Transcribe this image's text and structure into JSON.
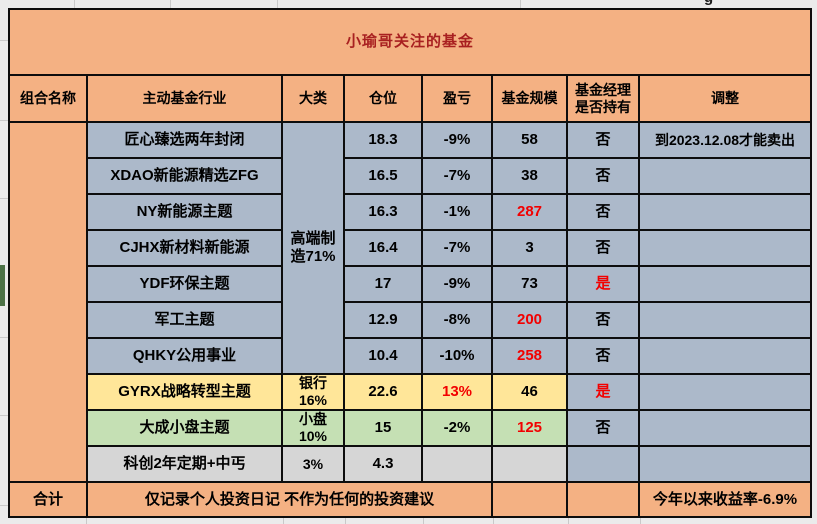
{
  "window": {
    "stray_glyph": "g"
  },
  "title": "小瑜哥关注的基金",
  "columns": [
    "组合名称",
    "主动基金行业",
    "大类",
    "仓位",
    "盈亏",
    "基金规模",
    "基金经理是否持有",
    "调整"
  ],
  "category_merged": "高端制造71%",
  "rows": [
    {
      "name": "匠心臻选两年封闭",
      "category": "",
      "position": "18.3",
      "pnl": "-9%",
      "pnl_red": false,
      "size": "58",
      "size_red": false,
      "held": "否",
      "held_red": false,
      "note": "到2023.12.08才能卖出",
      "bg": "blue"
    },
    {
      "name": "XDAO新能源精选ZFG",
      "category": "",
      "position": "16.5",
      "pnl": "-7%",
      "pnl_red": false,
      "size": "38",
      "size_red": false,
      "held": "否",
      "held_red": false,
      "note": "",
      "bg": "blue"
    },
    {
      "name": "NY新能源主题",
      "category": "",
      "position": "16.3",
      "pnl": "-1%",
      "pnl_red": false,
      "size": "287",
      "size_red": true,
      "held": "否",
      "held_red": false,
      "note": "",
      "bg": "blue"
    },
    {
      "name": "CJHX新材料新能源",
      "category": "",
      "position": "16.4",
      "pnl": "-7%",
      "pnl_red": false,
      "size": "3",
      "size_red": false,
      "held": "否",
      "held_red": false,
      "note": "",
      "bg": "blue"
    },
    {
      "name": "YDF环保主题",
      "category": "",
      "position": "17",
      "pnl": "-9%",
      "pnl_red": false,
      "size": "73",
      "size_red": false,
      "held": "是",
      "held_red": true,
      "note": "",
      "bg": "blue"
    },
    {
      "name": "军工主题",
      "category": "",
      "position": "12.9",
      "pnl": "-8%",
      "pnl_red": false,
      "size": "200",
      "size_red": true,
      "held": "否",
      "held_red": false,
      "note": "",
      "bg": "blue"
    },
    {
      "name": "QHKY公用事业",
      "category": "",
      "position": "10.4",
      "pnl": "-10%",
      "pnl_red": false,
      "size": "258",
      "size_red": true,
      "held": "否",
      "held_red": false,
      "note": "",
      "bg": "blue"
    },
    {
      "name": "GYRX战略转型主题",
      "category": "银行16%",
      "position": "22.6",
      "pnl": "13%",
      "pnl_red": true,
      "size": "46",
      "size_red": false,
      "held": "是",
      "held_red": true,
      "note": "",
      "bg": "yellow"
    },
    {
      "name": "大成小盘主题",
      "category": "小盘10%",
      "position": "15",
      "pnl": "-2%",
      "pnl_red": false,
      "size": "125",
      "size_red": true,
      "held": "否",
      "held_red": false,
      "note": "",
      "bg": "green"
    },
    {
      "name": "科创2年定期+中丐",
      "category": "3%",
      "position": "4.3",
      "pnl": "",
      "pnl_red": false,
      "size": "",
      "size_red": false,
      "held": "",
      "held_red": false,
      "note": "",
      "bg": "gray"
    }
  ],
  "footer": {
    "label": "合计",
    "disclaimer": "仅记录个人投资日记 不作为任何的投资建议",
    "ytd_return": "今年以来收益率-6.9%"
  },
  "colors": {
    "table_orange": "#F4B183",
    "row_blue_gray": "#ACB9CA",
    "row_yellow": "#FFE699",
    "row_green": "#C5E0B4",
    "row_gray": "#D6D6D6",
    "title_text": "#A82020",
    "alert_text": "#F20000",
    "border": "#0d0d0d",
    "canvas": "#EBEBEB",
    "selection_bar": "#4C7246"
  }
}
